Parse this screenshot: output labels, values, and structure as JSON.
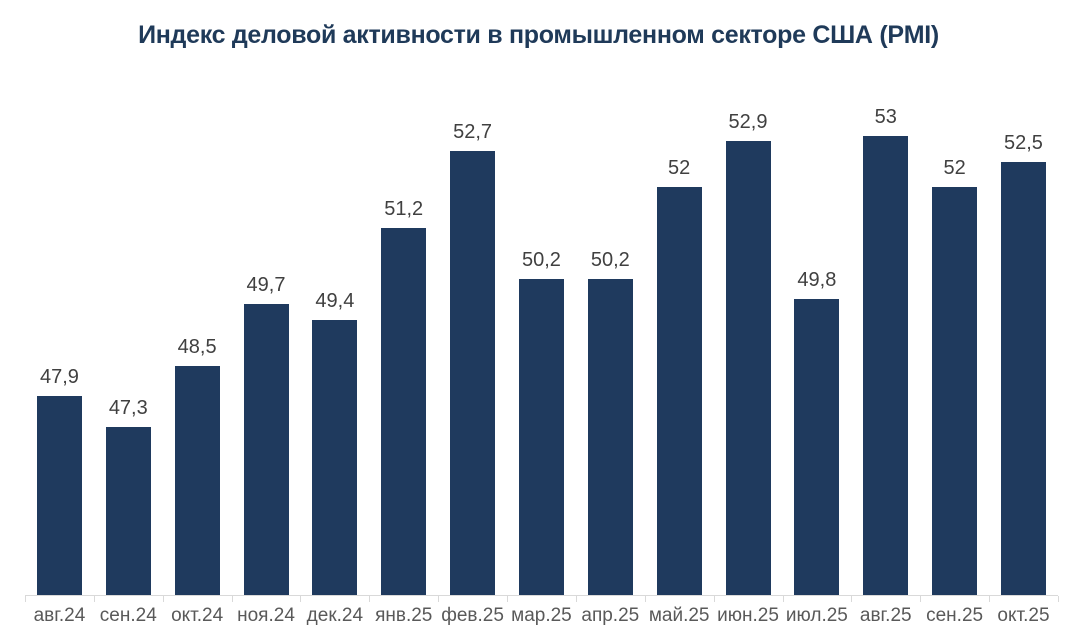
{
  "chart_data": {
    "type": "bar",
    "title": "Индекс деловой активности в промышленном секторе США (PMI)",
    "categories": [
      "авг.24",
      "сен.24",
      "окт.24",
      "ноя.24",
      "дек.24",
      "янв.25",
      "фев.25",
      "мар.25",
      "апр.25",
      "май.25",
      "июн.25",
      "июл.25",
      "авг.25",
      "сен.25",
      "окт.25"
    ],
    "values": [
      47.9,
      47.3,
      48.5,
      49.7,
      49.4,
      51.2,
      52.7,
      50.2,
      50.2,
      52,
      52.9,
      49.8,
      53,
      52,
      52.5
    ],
    "value_labels": [
      "47,9",
      "47,3",
      "48,5",
      "49,7",
      "49,4",
      "51,2",
      "52,7",
      "50,2",
      "50,2",
      "52",
      "52,9",
      "49,8",
      "53",
      "52",
      "52,5"
    ],
    "xlabel": "",
    "ylabel": "",
    "ylim": [
      44,
      54
    ],
    "grid": false,
    "legend": false,
    "colors": {
      "bar": "#1f3a5e",
      "title": "#1f3a59",
      "value_label": "#404040",
      "axis_label": "#595959",
      "axis_line": "#d9d9d9",
      "background": "#ffffff"
    }
  }
}
